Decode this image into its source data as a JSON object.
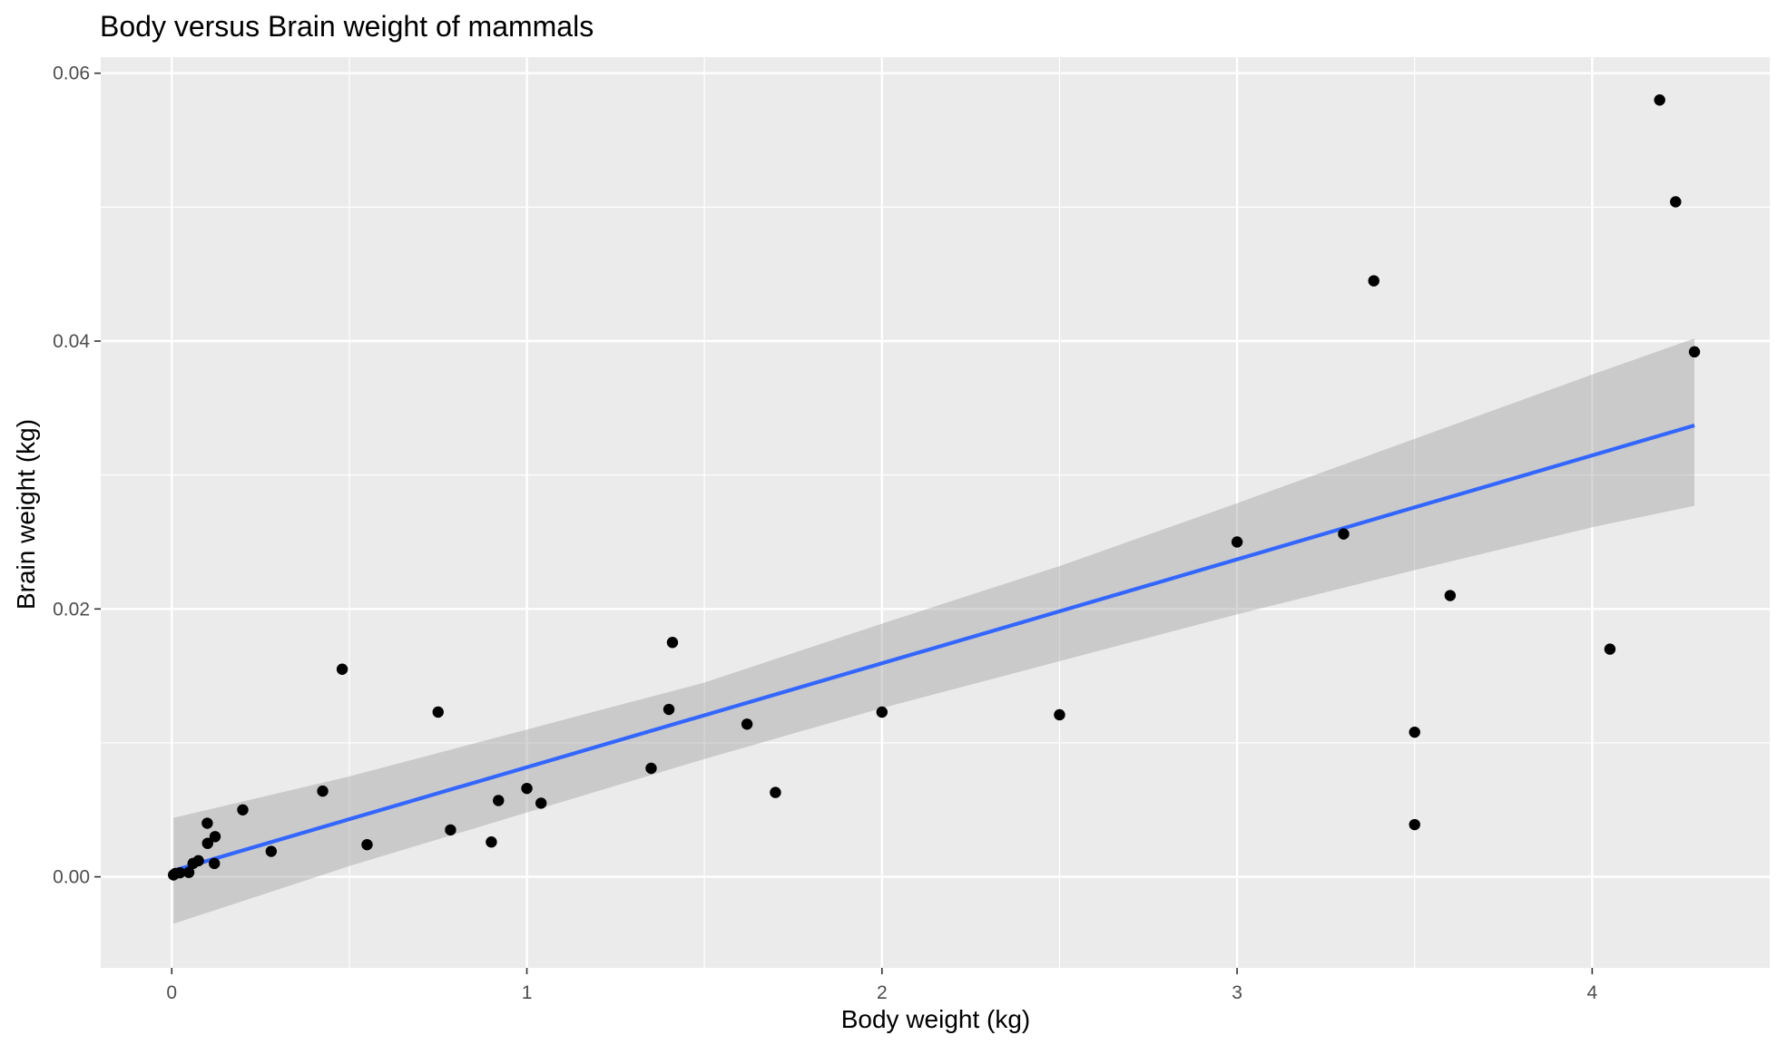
{
  "chart_data": {
    "type": "scatter",
    "title": "Body versus Brain weight of mammals",
    "xlabel": "Body weight (kg)",
    "ylabel": "Brain weight (kg)",
    "xlim": [
      -0.2,
      4.5
    ],
    "ylim": [
      -0.0068,
      0.0612
    ],
    "x_ticks": [
      0,
      1,
      2,
      3,
      4
    ],
    "x_tick_labels": [
      "0",
      "1",
      "2",
      "3",
      "4"
    ],
    "x_minor_ticks": [
      0.5,
      1.5,
      2.5,
      3.5
    ],
    "y_ticks": [
      0.0,
      0.02,
      0.04,
      0.06
    ],
    "y_tick_labels": [
      "0.00",
      "0.02",
      "0.04",
      "0.06"
    ],
    "y_minor_ticks": [
      0.01,
      0.03,
      0.05
    ],
    "grid": true,
    "colors": {
      "panel_background": "#ebebeb",
      "grid_line": "#ffffff",
      "point": "#000000",
      "fit_line": "#3366ff",
      "confidence_band": "#999999"
    },
    "points": [
      {
        "x": 0.005,
        "y": 0.00014
      },
      {
        "x": 0.01,
        "y": 0.00025
      },
      {
        "x": 0.023,
        "y": 0.0003
      },
      {
        "x": 0.048,
        "y": 0.00033
      },
      {
        "x": 0.06,
        "y": 0.001
      },
      {
        "x": 0.075,
        "y": 0.0012
      },
      {
        "x": 0.1,
        "y": 0.004
      },
      {
        "x": 0.101,
        "y": 0.0025
      },
      {
        "x": 0.12,
        "y": 0.001
      },
      {
        "x": 0.122,
        "y": 0.003
      },
      {
        "x": 0.2,
        "y": 0.005
      },
      {
        "x": 0.28,
        "y": 0.0019
      },
      {
        "x": 0.425,
        "y": 0.0064
      },
      {
        "x": 0.48,
        "y": 0.0155
      },
      {
        "x": 0.55,
        "y": 0.0024
      },
      {
        "x": 0.75,
        "y": 0.0123
      },
      {
        "x": 0.785,
        "y": 0.0035
      },
      {
        "x": 0.9,
        "y": 0.0026
      },
      {
        "x": 0.92,
        "y": 0.0057
      },
      {
        "x": 1.0,
        "y": 0.0066
      },
      {
        "x": 1.04,
        "y": 0.0055
      },
      {
        "x": 1.35,
        "y": 0.0081
      },
      {
        "x": 1.4,
        "y": 0.0125
      },
      {
        "x": 1.41,
        "y": 0.0175
      },
      {
        "x": 1.62,
        "y": 0.0114
      },
      {
        "x": 1.7,
        "y": 0.0063
      },
      {
        "x": 2.0,
        "y": 0.0123
      },
      {
        "x": 2.5,
        "y": 0.0121
      },
      {
        "x": 3.0,
        "y": 0.025
      },
      {
        "x": 3.3,
        "y": 0.0256
      },
      {
        "x": 3.385,
        "y": 0.0445
      },
      {
        "x": 3.5,
        "y": 0.0108
      },
      {
        "x": 3.5,
        "y": 0.0039
      },
      {
        "x": 3.6,
        "y": 0.021
      },
      {
        "x": 4.05,
        "y": 0.017
      },
      {
        "x": 4.19,
        "y": 0.058
      },
      {
        "x": 4.235,
        "y": 0.0504
      },
      {
        "x": 4.288,
        "y": 0.0392
      }
    ],
    "fit_line": {
      "x": [
        0.005,
        4.288
      ],
      "y": [
        0.00046,
        0.0337
      ]
    },
    "confidence_band": {
      "x": [
        0.005,
        0.5,
        1.0,
        1.5,
        2.0,
        2.5,
        3.0,
        3.5,
        4.0,
        4.288
      ],
      "upper": [
        0.0044,
        0.0075,
        0.011,
        0.0145,
        0.0189,
        0.0232,
        0.0279,
        0.0327,
        0.0375,
        0.0402
      ],
      "lower": [
        -0.0035,
        0.0008,
        0.0048,
        0.0088,
        0.0126,
        0.0161,
        0.0196,
        0.0229,
        0.0261,
        0.0277
      ]
    }
  }
}
